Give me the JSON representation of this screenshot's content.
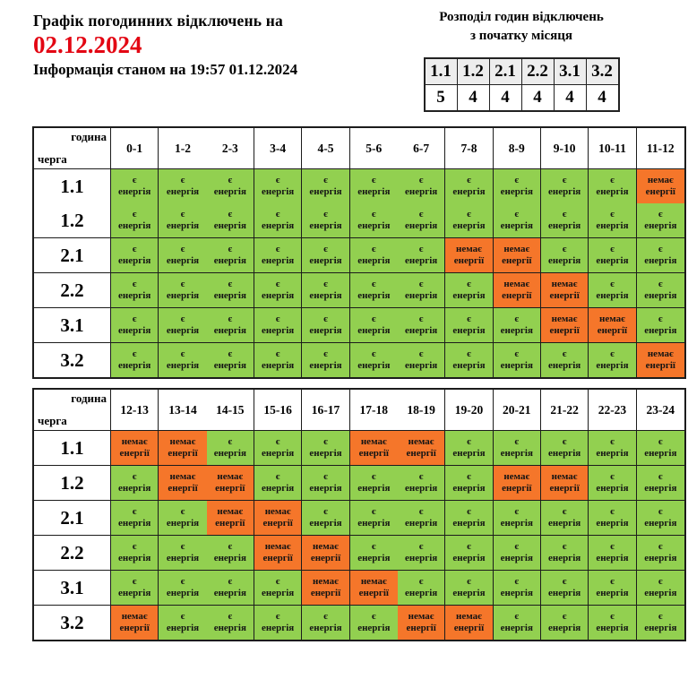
{
  "header": {
    "title": "Графік погодинних відключень на",
    "date": "02.12.2024",
    "info": "Інформація станом на 19:57 01.12.2024"
  },
  "distribution": {
    "title_line1": "Розподіл годин відключень",
    "title_line2": "з початку місяця",
    "queues": [
      "1.1",
      "1.2",
      "2.1",
      "2.2",
      "3.1",
      "3.2"
    ],
    "hours": [
      "5",
      "4",
      "4",
      "4",
      "4",
      "4"
    ]
  },
  "legend": {
    "corner_top": "година",
    "corner_bottom": "черга",
    "on_line1": "є",
    "on_line2": "енергія",
    "off_line1": "немає",
    "off_line2": "енергії"
  },
  "colors": {
    "on": "#92d050",
    "off": "#f5762a",
    "date": "#e30613",
    "header_bg": "#ededed"
  },
  "tables": [
    {
      "hours": [
        "0-1",
        "1-2",
        "2-3",
        "3-4",
        "4-5",
        "5-6",
        "6-7",
        "7-8",
        "8-9",
        "9-10",
        "10-11",
        "11-12"
      ],
      "rows": [
        {
          "queue": "1.1",
          "states": [
            "on",
            "on",
            "on",
            "on",
            "on",
            "on",
            "on",
            "on",
            "on",
            "on",
            "on",
            "off"
          ]
        },
        {
          "queue": "1.2",
          "states": [
            "on",
            "on",
            "on",
            "on",
            "on",
            "on",
            "on",
            "on",
            "on",
            "on",
            "on",
            "on"
          ]
        },
        {
          "queue": "2.1",
          "states": [
            "on",
            "on",
            "on",
            "on",
            "on",
            "on",
            "on",
            "off",
            "off",
            "on",
            "on",
            "on"
          ]
        },
        {
          "queue": "2.2",
          "states": [
            "on",
            "on",
            "on",
            "on",
            "on",
            "on",
            "on",
            "on",
            "off",
            "off",
            "on",
            "on"
          ]
        },
        {
          "queue": "3.1",
          "states": [
            "on",
            "on",
            "on",
            "on",
            "on",
            "on",
            "on",
            "on",
            "on",
            "off",
            "off",
            "on"
          ]
        },
        {
          "queue": "3.2",
          "states": [
            "on",
            "on",
            "on",
            "on",
            "on",
            "on",
            "on",
            "on",
            "on",
            "on",
            "on",
            "off"
          ]
        }
      ]
    },
    {
      "hours": [
        "12-13",
        "13-14",
        "14-15",
        "15-16",
        "16-17",
        "17-18",
        "18-19",
        "19-20",
        "20-21",
        "21-22",
        "22-23",
        "23-24"
      ],
      "rows": [
        {
          "queue": "1.1",
          "states": [
            "off",
            "off",
            "on",
            "on",
            "on",
            "off",
            "off",
            "on",
            "on",
            "on",
            "on",
            "on"
          ]
        },
        {
          "queue": "1.2",
          "states": [
            "on",
            "off",
            "off",
            "on",
            "on",
            "on",
            "on",
            "on",
            "off",
            "off",
            "on",
            "on"
          ]
        },
        {
          "queue": "2.1",
          "states": [
            "on",
            "on",
            "off",
            "off",
            "on",
            "on",
            "on",
            "on",
            "on",
            "on",
            "on",
            "on"
          ]
        },
        {
          "queue": "2.2",
          "states": [
            "on",
            "on",
            "on",
            "off",
            "off",
            "on",
            "on",
            "on",
            "on",
            "on",
            "on",
            "on"
          ]
        },
        {
          "queue": "3.1",
          "states": [
            "on",
            "on",
            "on",
            "on",
            "off",
            "off",
            "on",
            "on",
            "on",
            "on",
            "on",
            "on"
          ]
        },
        {
          "queue": "3.2",
          "states": [
            "off",
            "on",
            "on",
            "on",
            "on",
            "on",
            "off",
            "off",
            "on",
            "on",
            "on",
            "on"
          ]
        }
      ]
    }
  ],
  "chart_data": {
    "type": "heatmap",
    "title": "Графік погодинних відключень на 02.12.2024",
    "subtitle": "Інформація станом на 19:57 01.12.2024",
    "x_categories": [
      "0-1",
      "1-2",
      "2-3",
      "3-4",
      "4-5",
      "5-6",
      "6-7",
      "7-8",
      "8-9",
      "9-10",
      "10-11",
      "11-12",
      "12-13",
      "13-14",
      "14-15",
      "15-16",
      "16-17",
      "17-18",
      "18-19",
      "19-20",
      "20-21",
      "21-22",
      "22-23",
      "23-24"
    ],
    "y_categories": [
      "1.1",
      "1.2",
      "2.1",
      "2.2",
      "3.1",
      "3.2"
    ],
    "cell_encoding": "1 = є енергія (зелений), 0 = немає енергії (помаранчевий)",
    "series": [
      {
        "name": "1.1",
        "values": [
          1,
          1,
          1,
          1,
          1,
          1,
          1,
          1,
          1,
          1,
          1,
          0,
          0,
          0,
          1,
          1,
          1,
          0,
          0,
          1,
          1,
          1,
          1,
          1
        ]
      },
      {
        "name": "1.2",
        "values": [
          1,
          1,
          1,
          1,
          1,
          1,
          1,
          1,
          1,
          1,
          1,
          1,
          1,
          0,
          0,
          1,
          1,
          1,
          1,
          1,
          0,
          0,
          1,
          1
        ]
      },
      {
        "name": "2.1",
        "values": [
          1,
          1,
          1,
          1,
          1,
          1,
          1,
          0,
          0,
          1,
          1,
          1,
          1,
          1,
          0,
          0,
          1,
          1,
          1,
          1,
          1,
          1,
          1,
          1
        ]
      },
      {
        "name": "2.2",
        "values": [
          1,
          1,
          1,
          1,
          1,
          1,
          1,
          1,
          0,
          0,
          1,
          1,
          1,
          1,
          1,
          0,
          0,
          1,
          1,
          1,
          1,
          1,
          1,
          1
        ]
      },
      {
        "name": "3.1",
        "values": [
          1,
          1,
          1,
          1,
          1,
          1,
          1,
          1,
          1,
          0,
          0,
          1,
          1,
          1,
          1,
          1,
          0,
          0,
          1,
          1,
          1,
          1,
          1,
          1
        ]
      },
      {
        "name": "3.2",
        "values": [
          1,
          1,
          1,
          1,
          1,
          1,
          1,
          1,
          1,
          1,
          1,
          0,
          0,
          1,
          1,
          1,
          1,
          1,
          0,
          0,
          1,
          1,
          1,
          1
        ]
      }
    ],
    "outage_hours_since_month_start": {
      "1.1": 5,
      "1.2": 4,
      "2.1": 4,
      "2.2": 4,
      "3.1": 4,
      "3.2": 4
    },
    "legend_position": "top-right",
    "grid": true
  }
}
